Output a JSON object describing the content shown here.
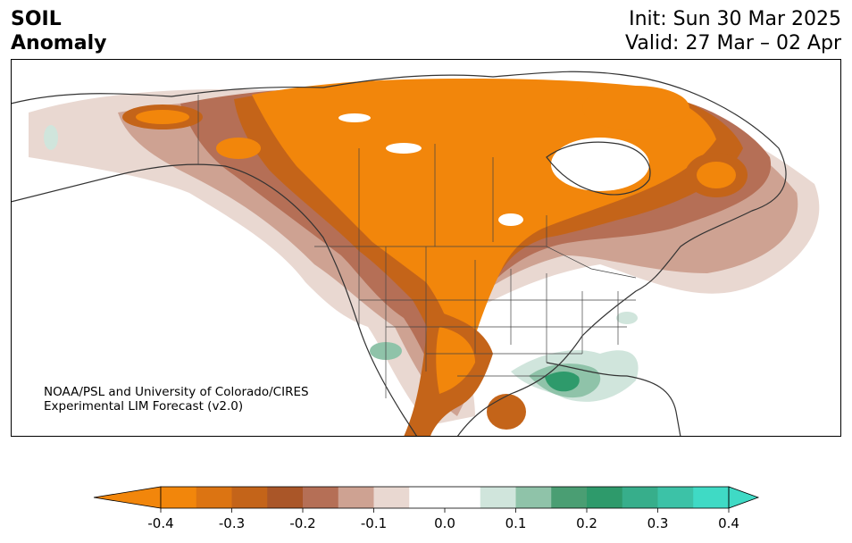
{
  "title": {
    "variable": "SOIL",
    "subtitle": "Anomaly",
    "init": "Init: Sun 30 Mar 2025",
    "valid": "Valid: 27 Mar – 02 Apr"
  },
  "credit": {
    "line1": "NOAA/PSL and University of Colorado/CIRES",
    "line2": "Experimental LIM Forecast (v2.0)"
  },
  "colorbar": {
    "min": -0.4,
    "max": 0.4,
    "step": 0.05,
    "extend": "both",
    "tick_labels": [
      "-0.4",
      "-0.3",
      "-0.2",
      "-0.1",
      "0.0",
      "0.1",
      "0.2",
      "0.3",
      "0.4"
    ],
    "colors": [
      "#f2860b",
      "#dc7412",
      "#c46419",
      "#aa5628",
      "#b56f56",
      "#cea292",
      "#e9d8d1",
      "#ffffff",
      "#ffffff",
      "#d0e5dc",
      "#8fc3a9",
      "#4a9e73",
      "#2e9a6b",
      "#37ae8b",
      "#3cc2a7",
      "#3fdac5"
    ]
  },
  "map": {
    "region": "North America",
    "colors": {
      "orange_strong": "#f2860b",
      "orange_mid": "#c46419",
      "brown": "#b56f56",
      "tan": "#cea292",
      "pink": "#e9d8d1",
      "green_light": "#d0e5dc",
      "green_mid": "#8fc3a9",
      "teal": "#2e9a6b",
      "coast": "#333333"
    }
  }
}
